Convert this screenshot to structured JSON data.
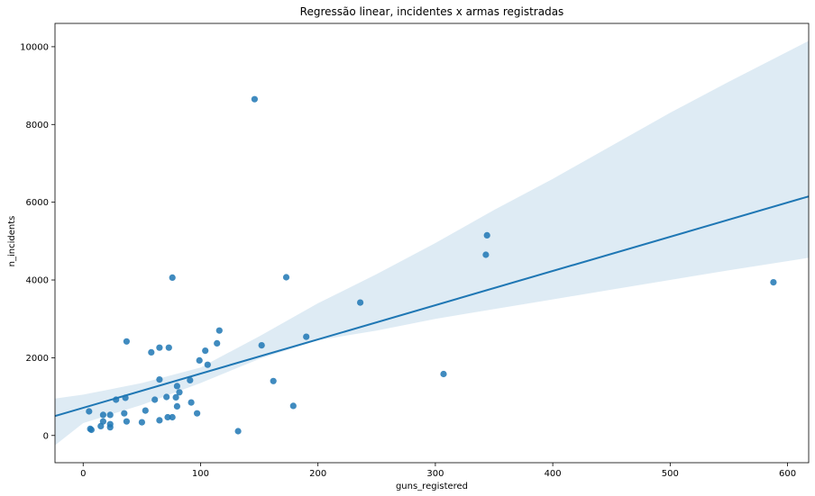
{
  "chart_data": {
    "type": "scatter",
    "title": "Regressão linear, incidentes x armas registradas",
    "xlabel": "guns_registered",
    "ylabel": "n_incidents",
    "xlim": [
      -24,
      618
    ],
    "ylim": [
      -700,
      10600
    ],
    "xticks": [
      0,
      100,
      200,
      300,
      400,
      500,
      600
    ],
    "yticks": [
      0,
      2000,
      4000,
      6000,
      8000,
      10000
    ],
    "grid": false,
    "colors": {
      "points": "#1f77b4",
      "line": "#1f77b4",
      "band": "#1f77b4"
    },
    "points": [
      [
        5,
        620
      ],
      [
        6,
        170
      ],
      [
        7,
        145
      ],
      [
        15,
        240
      ],
      [
        17,
        360
      ],
      [
        17,
        530
      ],
      [
        23,
        210
      ],
      [
        23,
        290
      ],
      [
        23,
        530
      ],
      [
        28,
        920
      ],
      [
        35,
        570
      ],
      [
        36,
        970
      ],
      [
        37,
        2420
      ],
      [
        37,
        360
      ],
      [
        50,
        340
      ],
      [
        53,
        640
      ],
      [
        58,
        2140
      ],
      [
        61,
        920
      ],
      [
        65,
        2260
      ],
      [
        65,
        1440
      ],
      [
        65,
        390
      ],
      [
        71,
        990
      ],
      [
        72,
        470
      ],
      [
        73,
        2260
      ],
      [
        76,
        4060
      ],
      [
        76,
        470
      ],
      [
        79,
        980
      ],
      [
        80,
        750
      ],
      [
        80,
        1270
      ],
      [
        82,
        1110
      ],
      [
        91,
        1420
      ],
      [
        92,
        850
      ],
      [
        97,
        570
      ],
      [
        99,
        1930
      ],
      [
        104,
        2180
      ],
      [
        106,
        1820
      ],
      [
        114,
        2370
      ],
      [
        116,
        2700
      ],
      [
        132,
        110
      ],
      [
        146,
        8650
      ],
      [
        152,
        2320
      ],
      [
        162,
        1400
      ],
      [
        173,
        4070
      ],
      [
        179,
        760
      ],
      [
        190,
        2540
      ],
      [
        236,
        3420
      ],
      [
        307,
        1580
      ],
      [
        343,
        4650
      ],
      [
        344,
        5150
      ],
      [
        588,
        3940
      ]
    ],
    "regression": {
      "x": [
        -24,
        618
      ],
      "y": [
        500,
        6150
      ]
    },
    "confidence_band": {
      "x": [
        -24,
        0,
        50,
        100,
        150,
        200,
        250,
        300,
        350,
        400,
        450,
        500,
        550,
        618
      ],
      "upper": [
        950,
        1050,
        1350,
        1750,
        2550,
        3400,
        4150,
        4950,
        5800,
        6600,
        7450,
        8300,
        9100,
        10150
      ],
      "lower": [
        -250,
        320,
        790,
        1350,
        1970,
        2450,
        2700,
        3000,
        3250,
        3500,
        3750,
        4000,
        4250,
        4570
      ]
    }
  }
}
